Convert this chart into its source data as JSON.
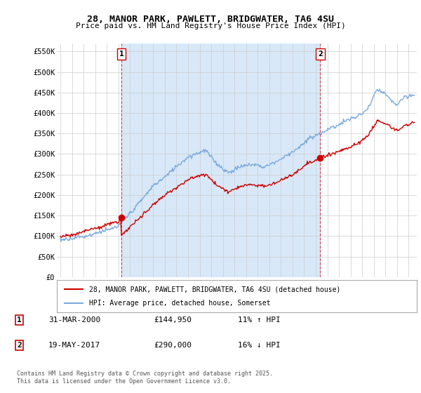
{
  "title_line1": "28, MANOR PARK, PAWLETT, BRIDGWATER, TA6 4SU",
  "title_line2": "Price paid vs. HM Land Registry's House Price Index (HPI)",
  "ylabel_ticks": [
    "£0",
    "£50K",
    "£100K",
    "£150K",
    "£200K",
    "£250K",
    "£300K",
    "£350K",
    "£400K",
    "£450K",
    "£500K",
    "£550K"
  ],
  "ytick_values": [
    0,
    50000,
    100000,
    150000,
    200000,
    250000,
    300000,
    350000,
    400000,
    450000,
    500000,
    550000
  ],
  "ylim": [
    0,
    570000
  ],
  "xlim_start": 1994.7,
  "xlim_end": 2025.7,
  "t1": 2000.25,
  "t2": 2017.38,
  "v1": 144950,
  "v2": 290000,
  "legend_label_red": "28, MANOR PARK, PAWLETT, BRIDGWATER, TA6 4SU (detached house)",
  "legend_label_blue": "HPI: Average price, detached house, Somerset",
  "note1_label": "1",
  "note1_date": "31-MAR-2000",
  "note1_price": "£144,950",
  "note1_hpi": "11% ↑ HPI",
  "note2_label": "2",
  "note2_date": "19-MAY-2017",
  "note2_price": "£290,000",
  "note2_hpi": "16% ↓ HPI",
  "footer": "Contains HM Land Registry data © Crown copyright and database right 2025.\nThis data is licensed under the Open Government Licence v3.0.",
  "red_color": "#cc0000",
  "blue_color": "#7aaadd",
  "shade_color": "#d8e8f8",
  "vline_color": "#cc0000",
  "background_color": "#ffffff",
  "grid_color": "#cccccc"
}
